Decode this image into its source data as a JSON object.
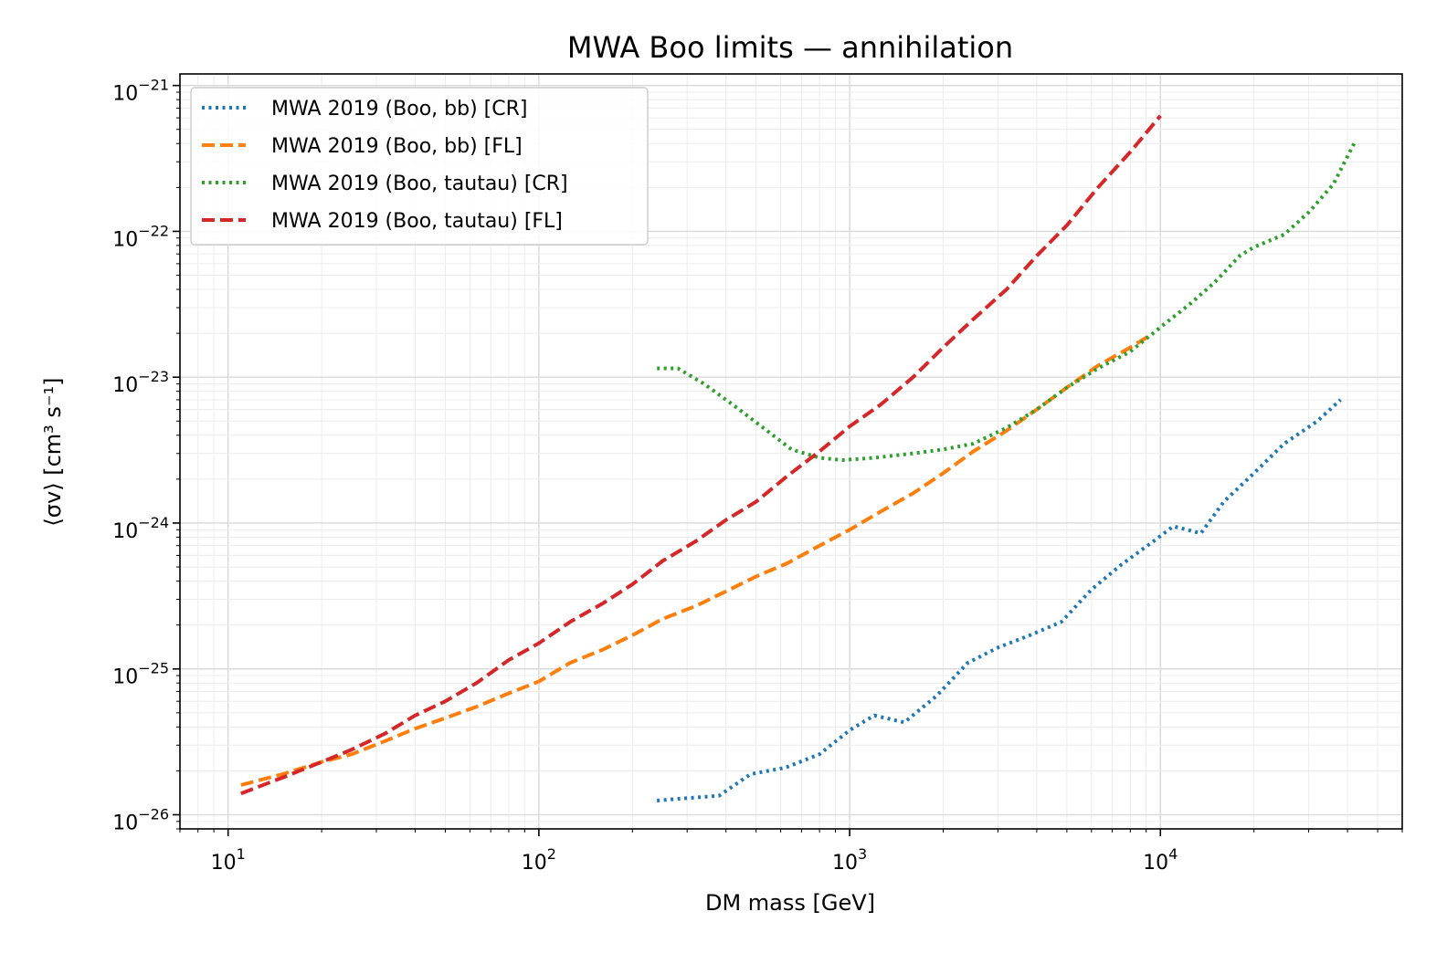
{
  "chart_data": {
    "type": "line",
    "title": "MWA Boo limits — annihilation",
    "xlabel": "DM mass [GeV]",
    "ylabel": "⟨σv⟩ [cm³ s⁻¹]",
    "xscale": "log",
    "yscale": "log",
    "xlim": [
      7,
      60000
    ],
    "ylim": [
      8e-27,
      1.2e-21
    ],
    "xticks": [
      {
        "value": 10,
        "base": "10",
        "exp": "1"
      },
      {
        "value": 100,
        "base": "10",
        "exp": "2"
      },
      {
        "value": 1000,
        "base": "10",
        "exp": "3"
      },
      {
        "value": 10000,
        "base": "10",
        "exp": "4"
      }
    ],
    "yticks": [
      {
        "value": 1e-26,
        "base": "10",
        "exp": "−26"
      },
      {
        "value": 1e-25,
        "base": "10",
        "exp": "−25"
      },
      {
        "value": 1e-24,
        "base": "10",
        "exp": "−24"
      },
      {
        "value": 1e-23,
        "base": "10",
        "exp": "−23"
      },
      {
        "value": 1e-22,
        "base": "10",
        "exp": "−22"
      },
      {
        "value": 1e-21,
        "base": "10",
        "exp": "−21"
      }
    ],
    "grid": true,
    "legend_position": "top-left",
    "series": [
      {
        "name": "MWA 2019 (Boo, bb) [CR]",
        "color": "#1f77b4",
        "style": "dotted",
        "x": [
          240,
          300,
          380,
          480,
          620,
          800,
          1000,
          1200,
          1500,
          1900,
          2400,
          3000,
          3800,
          4800,
          6000,
          7500,
          9500,
          11000,
          13500,
          16000,
          20000,
          25000,
          32000,
          38000
        ],
        "y": [
          1.25e-26,
          1.3e-26,
          1.35e-26,
          1.9e-26,
          2.1e-26,
          2.6e-26,
          3.8e-26,
          4.8e-26,
          4.3e-26,
          6.5e-26,
          1.1e-25,
          1.4e-25,
          1.7e-25,
          2.1e-25,
          3.5e-25,
          5.2e-25,
          7.5e-25,
          9.5e-25,
          8.5e-25,
          1.4e-24,
          2.2e-24,
          3.5e-24,
          5e-24,
          7e-24
        ]
      },
      {
        "name": "MWA 2019 (Boo, bb) [FL]",
        "color": "#ff7f0e",
        "style": "dashed",
        "x": [
          11,
          15,
          20,
          25,
          32,
          40,
          50,
          63,
          80,
          100,
          126,
          160,
          200,
          250,
          320,
          400,
          500,
          630,
          800,
          1000,
          1260,
          1600,
          2000,
          2500,
          3200,
          4000,
          5000,
          6300,
          8000,
          9500
        ],
        "y": [
          1.6e-26,
          1.9e-26,
          2.3e-26,
          2.6e-26,
          3.2e-26,
          3.9e-26,
          4.6e-26,
          5.5e-26,
          6.8e-26,
          8.2e-26,
          1.1e-25,
          1.35e-25,
          1.7e-25,
          2.2e-25,
          2.7e-25,
          3.4e-25,
          4.3e-25,
          5.3e-25,
          7e-25,
          9e-25,
          1.2e-24,
          1.6e-24,
          2.2e-24,
          3.1e-24,
          4.3e-24,
          6e-24,
          8.5e-24,
          1.2e-23,
          1.6e-23,
          2e-23
        ]
      },
      {
        "name": "MWA 2019 (Boo, tautau) [CR]",
        "color": "#2ca02c",
        "style": "dotted",
        "x": [
          240,
          280,
          340,
          420,
          520,
          650,
          800,
          950,
          1200,
          1600,
          2000,
          2500,
          3200,
          4000,
          5000,
          6300,
          8000,
          10000,
          12500,
          15000,
          18000,
          20000,
          25000,
          30000,
          36000,
          42000
        ],
        "y": [
          1.15e-23,
          1.15e-23,
          9e-24,
          6.5e-24,
          4.6e-24,
          3.2e-24,
          2.8e-24,
          2.7e-24,
          2.8e-24,
          3e-24,
          3.2e-24,
          3.5e-24,
          4.5e-24,
          6e-24,
          8.5e-24,
          1.15e-23,
          1.5e-23,
          2.2e-23,
          3.2e-23,
          4.5e-23,
          6.8e-23,
          7.8e-23,
          9.5e-23,
          1.35e-22,
          2.1e-22,
          4e-22
        ]
      },
      {
        "name": "MWA 2019 (Boo, tautau) [FL]",
        "color": "#d62728",
        "style": "dashed",
        "x": [
          11,
          15,
          20,
          25,
          32,
          40,
          50,
          63,
          80,
          100,
          126,
          160,
          200,
          250,
          320,
          400,
          500,
          630,
          800,
          1000,
          1260,
          1600,
          2000,
          2500,
          3200,
          4000,
          5000,
          6300,
          8000,
          10000
        ],
        "y": [
          1.4e-26,
          1.8e-26,
          2.3e-26,
          2.8e-26,
          3.6e-26,
          4.8e-26,
          6e-26,
          8e-26,
          1.15e-25,
          1.5e-25,
          2.1e-25,
          2.8e-25,
          3.8e-25,
          5.5e-25,
          7.5e-25,
          1.05e-24,
          1.4e-24,
          2.1e-24,
          3.1e-24,
          4.6e-24,
          6.5e-24,
          1e-23,
          1.6e-23,
          2.5e-23,
          4e-23,
          6.8e-23,
          1.1e-22,
          2e-22,
          3.5e-22,
          6.2e-22
        ]
      }
    ]
  }
}
